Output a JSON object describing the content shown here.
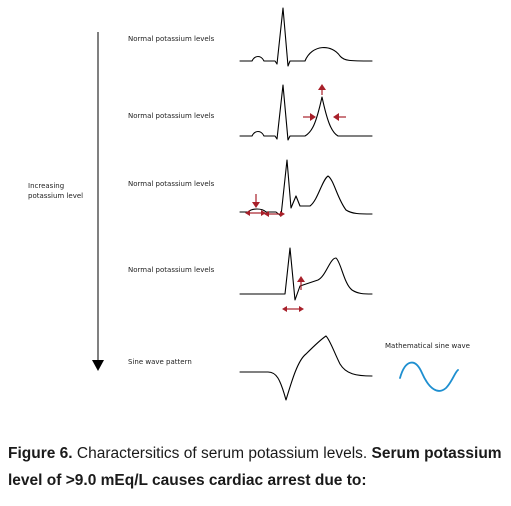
{
  "axis": {
    "label_line1": "Increasing",
    "label_line2": "potassium level"
  },
  "rows": [
    {
      "label": "Normal potassium levels"
    },
    {
      "label": "Normal potassium levels"
    },
    {
      "label": "Normal potassium levels"
    },
    {
      "label": "Normal potassium levels"
    },
    {
      "label": "Sine wave pattern"
    }
  ],
  "reference": {
    "label": "Mathematical sine wave"
  },
  "colors": {
    "annotation": "#a8202a",
    "sine": "#1e8fd0",
    "trace": "#000000"
  },
  "caption": {
    "figure_label": "Figure 6.",
    "description": " Charactersitics of serum potassium levels. ",
    "emphasis": "Serum potassium level of >9.0 mEq/L causes cardiac arrest due to:"
  }
}
